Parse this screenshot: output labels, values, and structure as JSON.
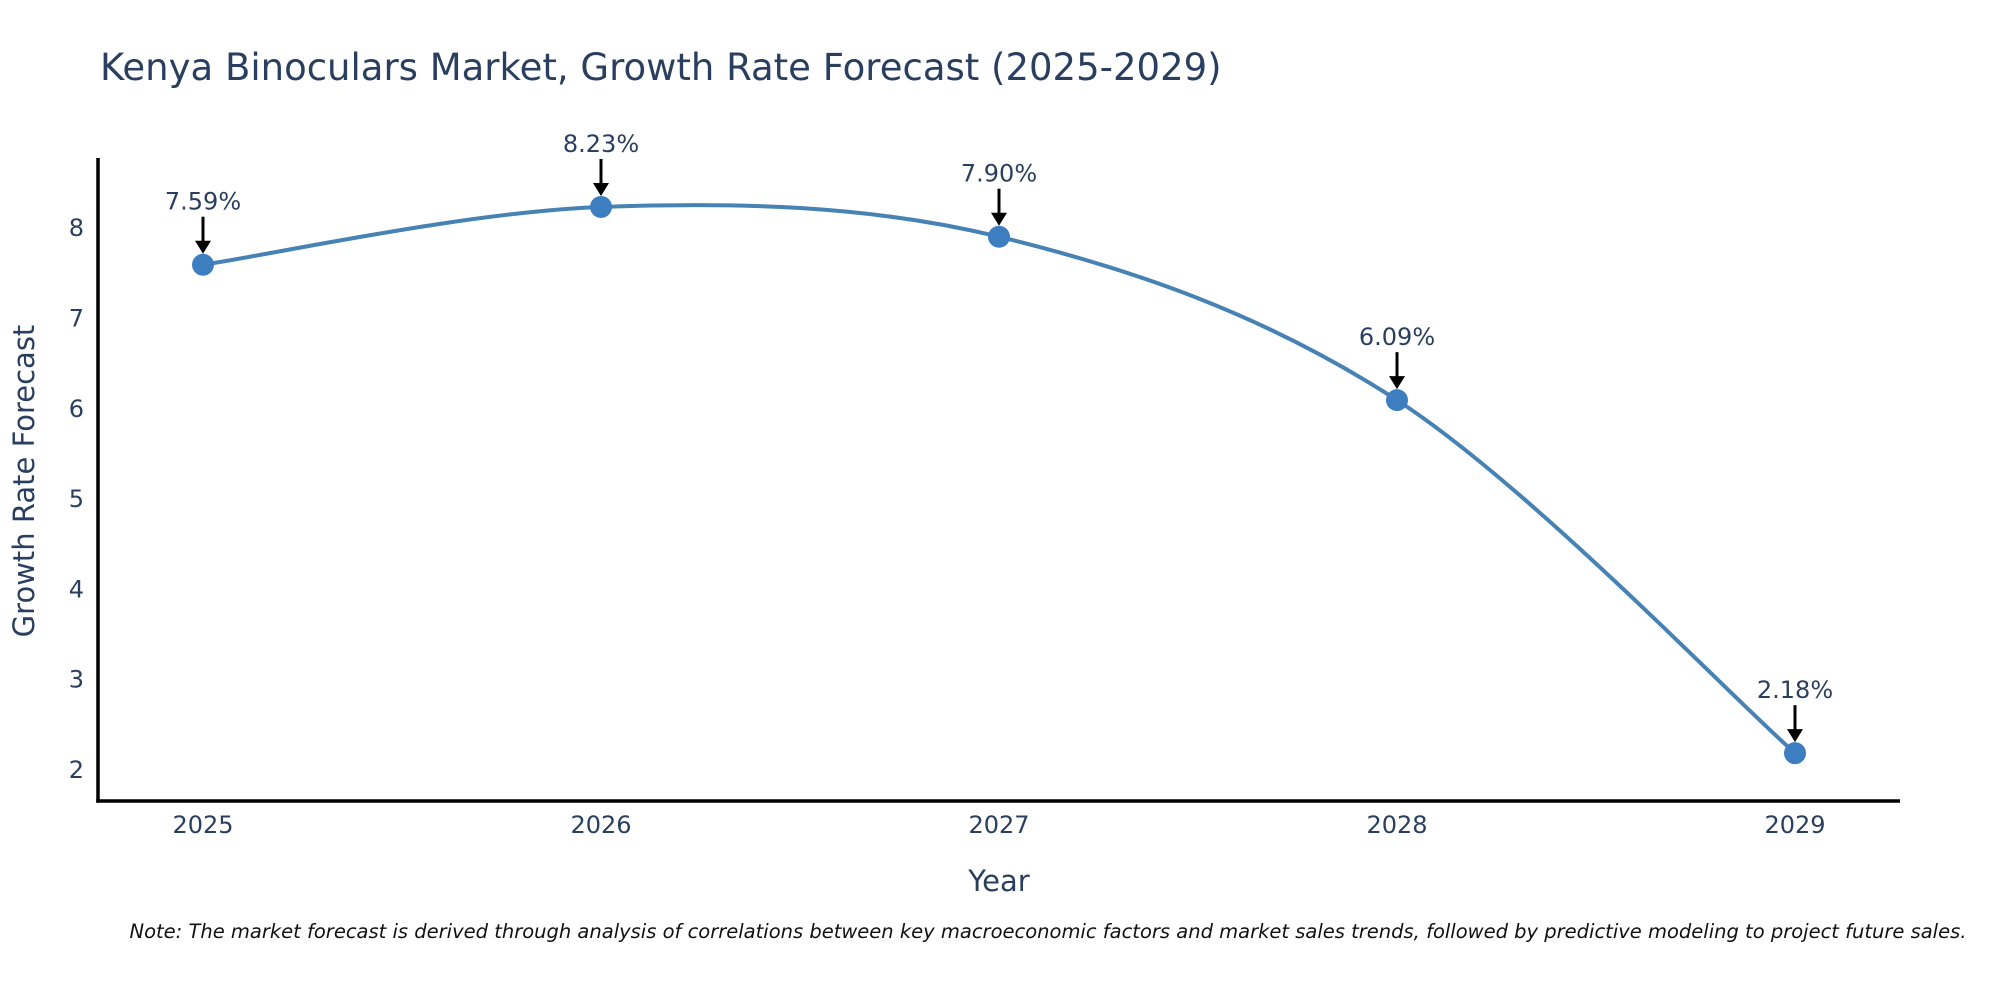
{
  "note": "Note: The market forecast is derived through analysis of correlations between key macroeconomic factors and market sales trends, followed by predictive modeling to project future sales.",
  "chart_data": {
    "type": "line",
    "title": "Kenya Binoculars Market, Growth Rate Forecast (2025-2029)",
    "x": [
      "2025",
      "2026",
      "2027",
      "2028",
      "2029"
    ],
    "series": [
      {
        "name": "Growth Rate Forecast",
        "values": [
          7.59,
          8.23,
          7.9,
          6.09,
          2.18
        ]
      }
    ],
    "point_labels": [
      "7.59%",
      "8.23%",
      "7.90%",
      "6.09%",
      "2.18%"
    ],
    "xlabel": "Year",
    "ylabel": "Growth Rate Forecast",
    "ylim": [
      1.65,
      8.75
    ],
    "yticks": [
      2,
      3,
      4,
      5,
      6,
      7,
      8
    ],
    "grid": false,
    "legend_position": "none",
    "line_shape": "spline",
    "marker_size": 11,
    "colors": {
      "line": "#4682b4",
      "marker": "#3c7ebf",
      "arrow": "#000000",
      "axis": "#000000",
      "text": "#2a3f5f",
      "note": "#111111",
      "background": "#ffffff"
    }
  }
}
